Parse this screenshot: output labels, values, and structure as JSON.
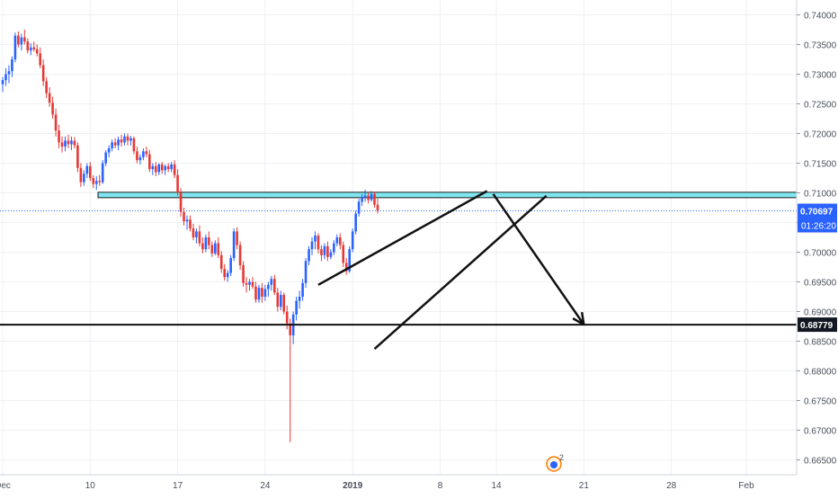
{
  "chart_data": {
    "type": "candlestick",
    "price_axis": {
      "range": [
        0.6625,
        0.7425
      ],
      "ticks": [
        0.74,
        0.735,
        0.73,
        0.725,
        0.72,
        0.715,
        0.71,
        0.705,
        0.7,
        0.695,
        0.69,
        0.685,
        0.68,
        0.675,
        0.67,
        0.665
      ],
      "tick_labels": [
        "0.74000",
        "0.73500",
        "0.73000",
        "0.72500",
        "0.72000",
        "0.71500",
        "0.71000",
        "0.70500",
        "0.70000",
        "0.69500",
        "0.69000",
        "0.68500",
        "0.68000",
        "0.67500",
        "0.67000",
        "0.66500"
      ]
    },
    "time_axis": {
      "labels": [
        "Dec",
        "10",
        "17",
        "24",
        "2019",
        "8",
        "14",
        "21",
        "28",
        "Feb"
      ],
      "label_bars": [
        0,
        28,
        56,
        84,
        112,
        140,
        158,
        186,
        214,
        238
      ]
    },
    "current_price": {
      "value": 0.70697,
      "label": "0.70697",
      "countdown": "01:26:20",
      "color": "#2962ff"
    },
    "support_level": {
      "value": 0.68779,
      "label": "0.68779"
    },
    "resistance_zone": {
      "from": 0.7101,
      "to": 0.7095,
      "color": "#7fe6f0"
    },
    "wedge_upper": {
      "start": {
        "bar": 101,
        "price": 0.6945
      },
      "end": {
        "bar": 155,
        "price": 0.7103
      }
    },
    "wedge_lower": {
      "start": {
        "bar": 119,
        "price": 0.6837
      },
      "end": {
        "bar": 174,
        "price": 0.7095
      }
    },
    "forecast_arrow": {
      "start": {
        "bar": 157,
        "price": 0.7098
      },
      "end": {
        "bar": 186,
        "price": 0.6878
      }
    },
    "indicator_badge": {
      "count": "2"
    },
    "colors": {
      "up": "#2962ff",
      "down": "#e53935",
      "grid": "#eef0f3",
      "axis_text": "#4a4f5a",
      "annotation": "#111111"
    },
    "candles": [
      [
        0.7283,
        0.7295,
        0.727,
        0.729
      ],
      [
        0.729,
        0.731,
        0.728,
        0.73
      ],
      [
        0.73,
        0.7315,
        0.7285,
        0.7305
      ],
      [
        0.7305,
        0.733,
        0.7295,
        0.7325
      ],
      [
        0.7325,
        0.737,
        0.732,
        0.7365
      ],
      [
        0.7365,
        0.7372,
        0.7345,
        0.735
      ],
      [
        0.735,
        0.7368,
        0.734,
        0.7362
      ],
      [
        0.7362,
        0.7375,
        0.735,
        0.7355
      ],
      [
        0.7355,
        0.736,
        0.7335,
        0.734
      ],
      [
        0.734,
        0.7352,
        0.7332,
        0.7345
      ],
      [
        0.7345,
        0.7355,
        0.7338,
        0.7342
      ],
      [
        0.7342,
        0.735,
        0.733,
        0.7335
      ],
      [
        0.7335,
        0.7345,
        0.731,
        0.7315
      ],
      [
        0.7315,
        0.7325,
        0.728,
        0.7288
      ],
      [
        0.7288,
        0.7295,
        0.726,
        0.7268
      ],
      [
        0.7268,
        0.7278,
        0.7245,
        0.7252
      ],
      [
        0.7252,
        0.7262,
        0.7225,
        0.7232
      ],
      [
        0.7232,
        0.7242,
        0.7195,
        0.7205
      ],
      [
        0.7205,
        0.7215,
        0.7175,
        0.7185
      ],
      [
        0.7185,
        0.7195,
        0.7168,
        0.7178
      ],
      [
        0.7178,
        0.7195,
        0.717,
        0.7188
      ],
      [
        0.7188,
        0.7198,
        0.7175,
        0.7182
      ],
      [
        0.7182,
        0.7195,
        0.7172,
        0.7188
      ],
      [
        0.7188,
        0.7194,
        0.7175,
        0.718
      ],
      [
        0.718,
        0.7185,
        0.7135,
        0.7142
      ],
      [
        0.7142,
        0.715,
        0.711,
        0.7118
      ],
      [
        0.7118,
        0.7138,
        0.7112,
        0.7132
      ],
      [
        0.7132,
        0.715,
        0.7125,
        0.7145
      ],
      [
        0.7145,
        0.7152,
        0.712,
        0.7125
      ],
      [
        0.7125,
        0.713,
        0.7108,
        0.7115
      ],
      [
        0.7115,
        0.7128,
        0.7105,
        0.712
      ],
      [
        0.712,
        0.713,
        0.7112,
        0.7118
      ],
      [
        0.7118,
        0.7155,
        0.7115,
        0.715
      ],
      [
        0.715,
        0.7172,
        0.7145,
        0.7168
      ],
      [
        0.7168,
        0.718,
        0.716,
        0.7175
      ],
      [
        0.7175,
        0.719,
        0.717,
        0.7185
      ],
      [
        0.7185,
        0.7192,
        0.7175,
        0.718
      ],
      [
        0.718,
        0.7195,
        0.7172,
        0.719
      ],
      [
        0.719,
        0.7198,
        0.7178,
        0.7185
      ],
      [
        0.7185,
        0.72,
        0.718,
        0.7195
      ],
      [
        0.7195,
        0.72,
        0.718,
        0.7188
      ],
      [
        0.7188,
        0.7196,
        0.718,
        0.7192
      ],
      [
        0.7192,
        0.7195,
        0.7165,
        0.717
      ],
      [
        0.717,
        0.7178,
        0.715,
        0.7155
      ],
      [
        0.7155,
        0.7165,
        0.7148,
        0.716
      ],
      [
        0.716,
        0.7175,
        0.7155,
        0.717
      ],
      [
        0.717,
        0.7178,
        0.716,
        0.7165
      ],
      [
        0.7165,
        0.7172,
        0.7135,
        0.714
      ],
      [
        0.714,
        0.715,
        0.713,
        0.7145
      ],
      [
        0.7145,
        0.7152,
        0.7128,
        0.7135
      ],
      [
        0.7135,
        0.715,
        0.713,
        0.7148
      ],
      [
        0.7148,
        0.7152,
        0.7132,
        0.7138
      ],
      [
        0.7138,
        0.7148,
        0.713,
        0.7145
      ],
      [
        0.7145,
        0.715,
        0.7135,
        0.714
      ],
      [
        0.714,
        0.7152,
        0.7135,
        0.7148
      ],
      [
        0.7148,
        0.7155,
        0.7125,
        0.713
      ],
      [
        0.713,
        0.714,
        0.7095,
        0.71
      ],
      [
        0.71,
        0.7108,
        0.706,
        0.7068
      ],
      [
        0.7068,
        0.7075,
        0.7045,
        0.7052
      ],
      [
        0.7052,
        0.7062,
        0.7038,
        0.7055
      ],
      [
        0.7055,
        0.7062,
        0.7035,
        0.704
      ],
      [
        0.704,
        0.7048,
        0.702,
        0.7025
      ],
      [
        0.7025,
        0.704,
        0.7015,
        0.7035
      ],
      [
        0.7035,
        0.7045,
        0.701,
        0.7015
      ],
      [
        0.7015,
        0.7025,
        0.6998,
        0.7005
      ],
      [
        0.7005,
        0.703,
        0.7,
        0.7025
      ],
      [
        0.7025,
        0.7035,
        0.7005,
        0.7012
      ],
      [
        0.7012,
        0.7018,
        0.6992,
        0.6998
      ],
      [
        0.6998,
        0.702,
        0.6995,
        0.7015
      ],
      [
        0.7015,
        0.7025,
        0.699,
        0.6995
      ],
      [
        0.6995,
        0.7002,
        0.6965,
        0.6972
      ],
      [
        0.6972,
        0.698,
        0.6952,
        0.6958
      ],
      [
        0.6958,
        0.697,
        0.695,
        0.6965
      ],
      [
        0.6965,
        0.6995,
        0.696,
        0.699
      ],
      [
        0.699,
        0.704,
        0.6985,
        0.7035
      ],
      [
        0.7035,
        0.7042,
        0.7005,
        0.7012
      ],
      [
        0.7012,
        0.7018,
        0.697,
        0.6978
      ],
      [
        0.6978,
        0.6985,
        0.6942,
        0.6948
      ],
      [
        0.6948,
        0.6958,
        0.6932,
        0.6945
      ],
      [
        0.6945,
        0.6955,
        0.6935,
        0.695
      ],
      [
        0.695,
        0.6958,
        0.6938,
        0.6942
      ],
      [
        0.6942,
        0.695,
        0.6915,
        0.692
      ],
      [
        0.692,
        0.6945,
        0.6915,
        0.694
      ],
      [
        0.694,
        0.6948,
        0.6915,
        0.6925
      ],
      [
        0.6925,
        0.6945,
        0.6918,
        0.6938
      ],
      [
        0.6938,
        0.695,
        0.6925,
        0.6945
      ],
      [
        0.6945,
        0.696,
        0.6935,
        0.6955
      ],
      [
        0.6955,
        0.6962,
        0.6928,
        0.6932
      ],
      [
        0.6932,
        0.694,
        0.69,
        0.6908
      ],
      [
        0.6908,
        0.6935,
        0.6902,
        0.6928
      ],
      [
        0.6928,
        0.6932,
        0.6895,
        0.69
      ],
      [
        0.69,
        0.691,
        0.687,
        0.688
      ],
      [
        0.688,
        0.6888,
        0.668,
        0.686
      ],
      [
        0.686,
        0.69,
        0.6845,
        0.6895
      ],
      [
        0.6895,
        0.6925,
        0.6885,
        0.6918
      ],
      [
        0.6918,
        0.6935,
        0.6905,
        0.6925
      ],
      [
        0.6925,
        0.6955,
        0.6918,
        0.6948
      ],
      [
        0.6948,
        0.699,
        0.694,
        0.6985
      ],
      [
        0.6985,
        0.701,
        0.6978,
        0.7005
      ],
      [
        0.7005,
        0.7025,
        0.6995,
        0.7018
      ],
      [
        0.7018,
        0.7035,
        0.7005,
        0.7028
      ],
      [
        0.7028,
        0.7032,
        0.6998,
        0.7005
      ],
      [
        0.7005,
        0.7012,
        0.6985,
        0.6995
      ],
      [
        0.6995,
        0.7015,
        0.6988,
        0.701
      ],
      [
        0.701,
        0.7018,
        0.6985,
        0.6992
      ],
      [
        0.6992,
        0.7005,
        0.6988,
        0.7
      ],
      [
        0.7,
        0.702,
        0.6995,
        0.7015
      ],
      [
        0.7015,
        0.703,
        0.701,
        0.7025
      ],
      [
        0.7025,
        0.7032,
        0.7005,
        0.7012
      ],
      [
        0.7012,
        0.7018,
        0.6975,
        0.6982
      ],
      [
        0.6982,
        0.699,
        0.6962,
        0.6968
      ],
      [
        0.6968,
        0.701,
        0.6965,
        0.7005
      ],
      [
        0.7005,
        0.704,
        0.7,
        0.7035
      ],
      [
        0.7035,
        0.707,
        0.703,
        0.7065
      ],
      [
        0.7065,
        0.709,
        0.706,
        0.7085
      ],
      [
        0.7085,
        0.7098,
        0.7078,
        0.7092
      ],
      [
        0.7092,
        0.7105,
        0.7085,
        0.7095
      ],
      [
        0.7095,
        0.7102,
        0.7082,
        0.7088
      ],
      [
        0.7088,
        0.7103,
        0.7085,
        0.7098
      ],
      [
        0.7098,
        0.7102,
        0.7075,
        0.708
      ],
      [
        0.708,
        0.709,
        0.7065,
        0.707
      ]
    ]
  }
}
